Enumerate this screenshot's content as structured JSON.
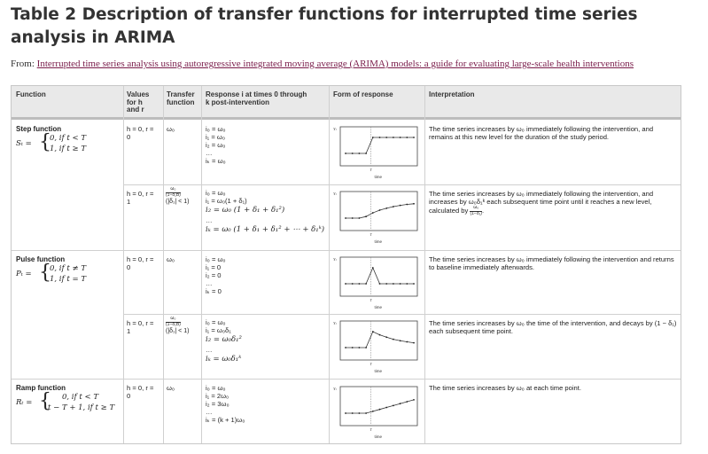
{
  "title": "Table 2 Description of transfer functions for interrupted time series analysis in ARIMA",
  "from_label": "From:",
  "from_link": "Interrupted time series analysis using autoregressive integrated moving average (ARIMA) models: a guide for evaluating large-scale health interventions",
  "headers": {
    "function": "Function",
    "values_1": "Values",
    "values_2": "for h",
    "values_3": "and r",
    "transfer_1": "Transfer",
    "transfer_2": "function",
    "response_1": "Response i at times 0 through",
    "response_2": "k post-intervention",
    "form": "Form of response",
    "interp": "Interpretation"
  },
  "axis_labels": {
    "y": "Yₜ",
    "x": "time",
    "t": "T"
  },
  "rows": [
    {
      "function_name": "Step function",
      "function_lhs": "Sₜ =",
      "function_case1": "0, if t < T",
      "function_case2": "1, if t ≥ T",
      "values_1": "h = 0, r =",
      "values_2": "0",
      "transfer": "ω₀",
      "response": [
        "i₀ = ω₀",
        "i₁ = ω₀",
        "i₂ = ω₀",
        "…",
        "iₖ = ω₀"
      ],
      "interp": "The time series increases by ω₀ immediately following the intervention, and remains at this new level for the duration of the study period.",
      "series": [
        0,
        0,
        0,
        0,
        1,
        1,
        1,
        1,
        1,
        1,
        1
      ]
    },
    {
      "values_1": "h = 0, r =",
      "values_2": "1",
      "transfer_num": "ω₀",
      "transfer_den": "(1−δ₁B)",
      "transfer_cond": "(|δ₁| < 1)",
      "response": [
        "i₀ = ω₀",
        "i₁ = ω₀(1 + δ₁)",
        "i₂ = ω₀ (1 + δ₁ + δ₁²)",
        "…",
        "iₖ = ω₀ (1 + δ₁ + δ₁² + ⋯ + δ₁ᵏ)"
      ],
      "interp_1": "The time series increases by ω₀ immediately following the intervention, and increases by ω₀δ₁ᵏ each subsequent time point until it reaches a new level, calculated by",
      "interp_frac_num": "ω₀",
      "interp_frac_den": "(1−δ₁)",
      "interp_end": ".",
      "series": [
        0,
        0,
        0,
        0.1,
        0.33,
        0.5,
        0.62,
        0.72,
        0.8,
        0.86,
        0.9
      ]
    },
    {
      "function_name": "Pulse function",
      "function_lhs": "Pₜ =",
      "function_case1": "0, if t ≠ T",
      "function_case2": "1, if t = T",
      "values_1": "h = 0, r =",
      "values_2": "0",
      "transfer": "ω₀",
      "response": [
        "i₀ = ω₀",
        "i₁ = 0",
        "i₂ = 0",
        "…",
        "iₖ = 0"
      ],
      "interp": "The time series increases by ω₀ immediately following the intervention and returns to baseline immediately afterwards.",
      "series": [
        0,
        0,
        0,
        0,
        1,
        0,
        0,
        0,
        0,
        0,
        0
      ]
    },
    {
      "values_1": "h = 0, r =",
      "values_2": "1",
      "transfer_num": "ω₀",
      "transfer_den": "(1−δ₁B)",
      "transfer_cond": "(|δ₁| < 1)",
      "response": [
        "i₀ = ω₀",
        "i₁ = ω₀δ₁",
        "i₂ = ω₀δ₁²",
        "…",
        "iₖ = ω₀δ₁ᵏ"
      ],
      "interp": "The time series increases by ω₀  the time of the intervention, and decays by (1 − δ₁) each subsequent time point.",
      "series": [
        0,
        0,
        0,
        0,
        1,
        0.8,
        0.65,
        0.52,
        0.43,
        0.36,
        0.3
      ]
    },
    {
      "function_name": "Ramp function",
      "function_lhs": "Rₜ =",
      "function_case1": "0, if t < T",
      "function_case2": "t − T + 1, if t ≥ T",
      "values_1": "h = 0, r =",
      "values_2": "0",
      "transfer": "ω₀",
      "response": [
        "i₀ = ω₀",
        "i₁ = 2ω₀",
        "i₂ = 3ω₀",
        "…",
        "iₖ = (k + 1)ω₀"
      ],
      "interp": "The time series increases by ω₀ at each time point.",
      "series": [
        0,
        0,
        0,
        0,
        0.12,
        0.24,
        0.36,
        0.48,
        0.6,
        0.72,
        0.84
      ]
    }
  ]
}
